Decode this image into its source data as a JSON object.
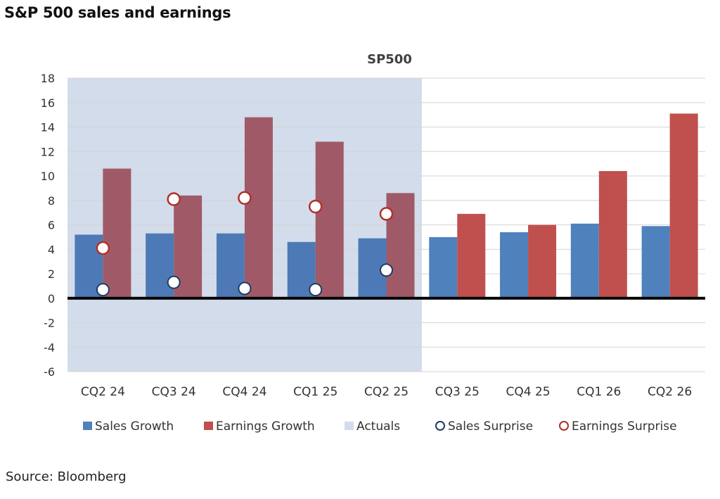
{
  "page": {
    "title": "S&P 500 sales and earnings",
    "source": "Source: Bloomberg"
  },
  "colors": {
    "sales": "#4f81bd",
    "earnings": "#c0504d",
    "actuals": "#d3dcea",
    "sales_actual": "#4d7ab6",
    "earnings_actual": "#a05a67",
    "grid": "#d4d4d4",
    "zero_line": "#000000"
  },
  "chart_data": {
    "type": "bar",
    "title": "SP500",
    "categories": [
      "CQ2 24",
      "CQ3 24",
      "CQ4 24",
      "CQ1 25",
      "CQ2 25",
      "CQ3 25",
      "CQ4 25",
      "CQ1 26",
      "CQ2 26"
    ],
    "series": [
      {
        "name": "Sales Growth",
        "kind": "bar",
        "values": [
          5.2,
          5.3,
          5.3,
          4.6,
          4.9,
          5.0,
          5.4,
          6.1,
          5.9
        ]
      },
      {
        "name": "Earnings Growth",
        "kind": "bar",
        "values": [
          10.6,
          8.4,
          14.8,
          12.8,
          8.6,
          6.9,
          6.0,
          10.4,
          15.1
        ]
      },
      {
        "name": "Actuals",
        "kind": "shaded-region",
        "categories": [
          "CQ2 24",
          "CQ3 24",
          "CQ4 24",
          "CQ1 25",
          "CQ2 25"
        ]
      },
      {
        "name": "Sales Surprise",
        "kind": "marker",
        "values": [
          0.7,
          1.3,
          0.8,
          0.7,
          2.3,
          null,
          null,
          null,
          null
        ]
      },
      {
        "name": "Earnings Surprise",
        "kind": "marker",
        "values": [
          4.1,
          8.1,
          8.2,
          7.5,
          6.9,
          null,
          null,
          null,
          null
        ]
      }
    ],
    "ylim": [
      -6,
      18
    ],
    "yticks": [
      -6,
      -4,
      -2,
      0,
      2,
      4,
      6,
      8,
      10,
      12,
      14,
      16,
      18
    ],
    "grid": true,
    "legend_position": "bottom"
  }
}
